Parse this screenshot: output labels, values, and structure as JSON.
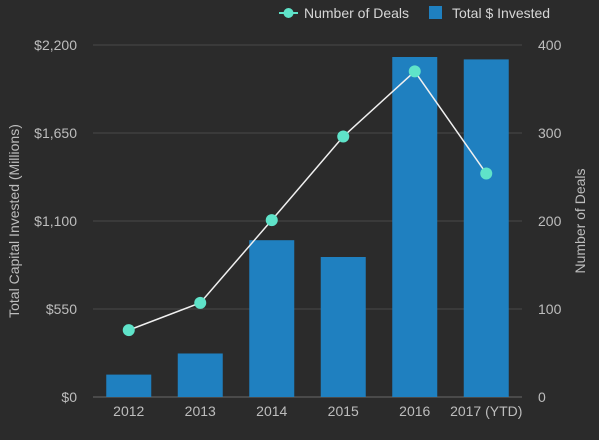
{
  "chart_data": {
    "type": "bar",
    "title": "",
    "categories": [
      "2012",
      "2013",
      "2014",
      "2015",
      "2016",
      "2017 (YTD)"
    ],
    "series": [
      {
        "name": "Total $ Invested",
        "type": "bar",
        "axis": "left",
        "values": [
          140,
          272,
          980,
          875,
          2125,
          2110
        ]
      },
      {
        "name": "Number of Deals",
        "type": "line",
        "axis": "right",
        "values": [
          76,
          107,
          201,
          296,
          370,
          254
        ]
      }
    ],
    "y_left": {
      "label": "Total Capital Invested (Millions)",
      "ylim": [
        0,
        2200
      ],
      "ticks": [
        "$0",
        "$550",
        "$1,100",
        "$1,650",
        "$2,200"
      ],
      "tick_values": [
        0,
        550,
        1100,
        1650,
        2200
      ]
    },
    "y_right": {
      "label": "Number of Deals",
      "ylim": [
        0,
        400
      ],
      "ticks": [
        "0",
        "100",
        "200",
        "300",
        "400"
      ],
      "tick_values": [
        0,
        100,
        200,
        300,
        400
      ]
    },
    "grid": true,
    "legend": {
      "position": "top-right",
      "items": [
        {
          "label": "Number of Deals",
          "marker": "line-dot",
          "color": "#5fe3c9"
        },
        {
          "label": "Total $ Invested",
          "marker": "square",
          "color": "#1f80c0"
        }
      ]
    },
    "colors": {
      "bar": "#1f80c0",
      "line": "#f0f0f0",
      "dot": "#5fe3c9",
      "grid": "#4a4a4a",
      "background": "#2b2b2b"
    }
  }
}
